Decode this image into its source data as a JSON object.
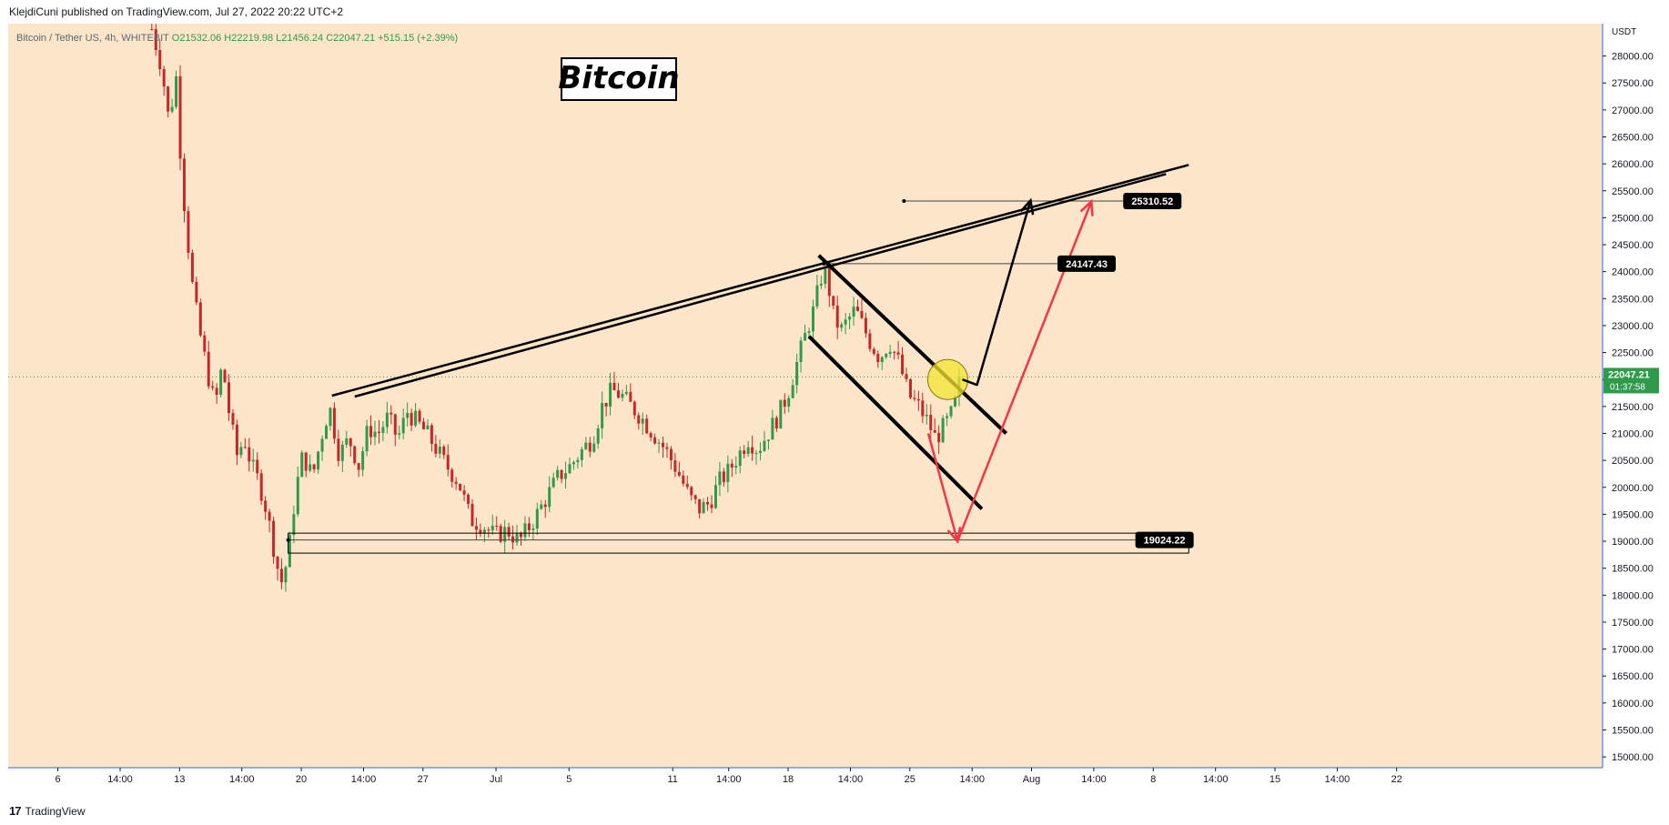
{
  "header": {
    "publish_line": "KlejdiCuni published on TradingView.com, Jul 27, 2022 20:22 UTC+2"
  },
  "legend": {
    "symbol": "Bitcoin / Tether US, 4h, WHITEBIT",
    "open": "O21532.06",
    "high": "H22219.98",
    "low": "L21456.24",
    "close": "C22047.21",
    "change": "+515.15 (+2.39%)"
  },
  "footer": {
    "logo_text": "TradingView",
    "logo_mark": "17"
  },
  "colors": {
    "background": "#fce5c9",
    "up": "#2f9a4a",
    "down": "#c62828",
    "line": "#000000",
    "projection_up": "#f23645",
    "highlight": "#f5e431"
  },
  "chart_data": {
    "type": "candlestick",
    "title": "Bitcoin",
    "symbol": "Bitcoin / Tether US",
    "timeframe": "4h",
    "exchange": "WHITEBIT",
    "currency_label": "USDT",
    "y_range": [
      14800,
      28600
    ],
    "y_ticks": [
      15000,
      15500,
      16000,
      16500,
      17000,
      17500,
      18000,
      18500,
      19000,
      19500,
      20000,
      20500,
      21000,
      21500,
      22000,
      22500,
      23000,
      23500,
      24000,
      24500,
      25000,
      25500,
      26000,
      26500,
      27000,
      27500,
      28000
    ],
    "y_tick_labels": [
      "15000.00",
      "15500.00",
      "16000.00",
      "16500.00",
      "17000.00",
      "17500.00",
      "18000.00",
      "18500.00",
      "19000.00",
      "19500.00",
      "20000.00",
      "20500.00",
      "21000.00",
      "21500.00",
      "22000.00",
      "22500.00",
      "23000.00",
      "23500.00",
      "24000.00",
      "24500.00",
      "25000.00",
      "25500.00",
      "26000.00",
      "26500.00",
      "27000.00",
      "27500.00",
      "28000.00"
    ],
    "x_range": [
      0,
      65.5
    ],
    "x_ticks": [
      {
        "t": 2.04,
        "label": "6"
      },
      {
        "t": 4.6,
        "label": "14:00"
      },
      {
        "t": 7.04,
        "label": "13"
      },
      {
        "t": 9.6,
        "label": "14:00"
      },
      {
        "t": 12.04,
        "label": "20"
      },
      {
        "t": 14.6,
        "label": "14:00"
      },
      {
        "t": 17.04,
        "label": "27"
      },
      {
        "t": 20.04,
        "label": "Jul"
      },
      {
        "t": 23.04,
        "label": "5"
      },
      {
        "t": 27.3,
        "label": "11"
      },
      {
        "t": 29.6,
        "label": "14:00"
      },
      {
        "t": 32.04,
        "label": "18"
      },
      {
        "t": 34.6,
        "label": "14:00"
      },
      {
        "t": 37.04,
        "label": "25"
      },
      {
        "t": 39.6,
        "label": "14:00"
      },
      {
        "t": 42.04,
        "label": "Aug"
      },
      {
        "t": 44.6,
        "label": "14:00"
      },
      {
        "t": 47.04,
        "label": "8"
      },
      {
        "t": 49.6,
        "label": "14:00"
      },
      {
        "t": 52.04,
        "label": "15"
      },
      {
        "t": 54.6,
        "label": "14:00"
      },
      {
        "t": 57.04,
        "label": "22"
      }
    ],
    "price_path": [
      [
        5.9,
        28500
      ],
      [
        6.3,
        27800
      ],
      [
        6.6,
        26800
      ],
      [
        6.9,
        27600
      ],
      [
        7.1,
        26000
      ],
      [
        7.3,
        24900
      ],
      [
        7.6,
        23600
      ],
      [
        7.9,
        22800
      ],
      [
        8.2,
        22100
      ],
      [
        8.5,
        21500
      ],
      [
        8.8,
        22300
      ],
      [
        9.1,
        21300
      ],
      [
        9.4,
        20600
      ],
      [
        9.7,
        20900
      ],
      [
        10.0,
        20400
      ],
      [
        10.3,
        20100
      ],
      [
        10.6,
        19600
      ],
      [
        10.9,
        18900
      ],
      [
        11.2,
        18200
      ],
      [
        11.5,
        18700
      ],
      [
        11.8,
        19900
      ],
      [
        12.1,
        20600
      ],
      [
        12.5,
        20200
      ],
      [
        12.9,
        21000
      ],
      [
        13.2,
        21500
      ],
      [
        13.6,
        20600
      ],
      [
        14.0,
        20900
      ],
      [
        14.4,
        20400
      ],
      [
        14.8,
        21100
      ],
      [
        15.2,
        21000
      ],
      [
        15.6,
        21300
      ],
      [
        16.0,
        20900
      ],
      [
        16.4,
        21400
      ],
      [
        16.8,
        21200
      ],
      [
        17.2,
        21000
      ],
      [
        17.6,
        20700
      ],
      [
        18.0,
        20400
      ],
      [
        18.5,
        20100
      ],
      [
        19.0,
        19400
      ],
      [
        19.5,
        19300
      ],
      [
        20.0,
        19100
      ],
      [
        20.5,
        19200
      ],
      [
        21.0,
        19000
      ],
      [
        21.6,
        19400
      ],
      [
        22.1,
        19800
      ],
      [
        22.6,
        20200
      ],
      [
        23.1,
        20400
      ],
      [
        23.6,
        20700
      ],
      [
        24.0,
        20900
      ],
      [
        24.4,
        21500
      ],
      [
        24.8,
        21800
      ],
      [
        25.2,
        21700
      ],
      [
        25.6,
        21500
      ],
      [
        26.0,
        21300
      ],
      [
        26.5,
        21000
      ],
      [
        27.0,
        20700
      ],
      [
        27.5,
        20300
      ],
      [
        28.0,
        19800
      ],
      [
        28.4,
        19600
      ],
      [
        28.8,
        19700
      ],
      [
        29.2,
        20100
      ],
      [
        29.6,
        20300
      ],
      [
        30.0,
        20600
      ],
      [
        30.4,
        20900
      ],
      [
        30.8,
        20700
      ],
      [
        31.2,
        21000
      ],
      [
        31.6,
        21300
      ],
      [
        32.0,
        21700
      ],
      [
        32.4,
        22300
      ],
      [
        32.8,
        22900
      ],
      [
        33.1,
        23300
      ],
      [
        33.4,
        23900
      ],
      [
        33.6,
        24000
      ],
      [
        33.9,
        23200
      ],
      [
        34.2,
        22900
      ],
      [
        34.5,
        23100
      ],
      [
        34.8,
        23300
      ],
      [
        35.1,
        23000
      ],
      [
        35.4,
        22700
      ],
      [
        35.8,
        22400
      ],
      [
        36.2,
        22700
      ],
      [
        36.6,
        22300
      ],
      [
        37.0,
        21700
      ],
      [
        37.4,
        21500
      ],
      [
        37.8,
        21200
      ],
      [
        38.1,
        20900
      ],
      [
        38.4,
        21100
      ],
      [
        38.7,
        21300
      ],
      [
        39.0,
        21700
      ],
      [
        39.2,
        22047
      ]
    ],
    "annotations": {
      "title_box": "Bitcoin",
      "levels": [
        {
          "label": "25310.52",
          "price": 25310.52,
          "t_start": 36.8
        },
        {
          "label": "24147.43",
          "price": 24147.43,
          "t_start": 33.5
        },
        {
          "label": "19024.22",
          "price": 19024.22,
          "t_start": 11.5
        }
      ],
      "support_zone": {
        "price_low": 18780,
        "price_high": 19150,
        "t_start": 11.5,
        "t_end": 48.5
      },
      "rising_resistance": {
        "t1": 13.3,
        "p1": 21700,
        "t2": 48.5,
        "p2": 25980
      },
      "falling_channel": {
        "upper": [
          [
            33.3,
            24300
          ],
          [
            41.0,
            21000
          ]
        ],
        "lower": [
          [
            32.9,
            22800
          ],
          [
            40.0,
            19600
          ]
        ]
      },
      "highlight_circle": {
        "t": 38.6,
        "p": 22000
      },
      "projections": [
        {
          "name": "bullish",
          "points": [
            [
              39.2,
              22000
            ],
            [
              39.8,
              21900
            ],
            [
              42.0,
              25320
            ]
          ]
        },
        {
          "name": "dip-then-rally",
          "points": [
            [
              37.8,
              21000
            ],
            [
              39.0,
              19000
            ],
            [
              44.5,
              25300
            ]
          ]
        }
      ],
      "last_price": {
        "label": "22047.21",
        "countdown": "01:37:58",
        "price": 22047.21
      }
    }
  }
}
